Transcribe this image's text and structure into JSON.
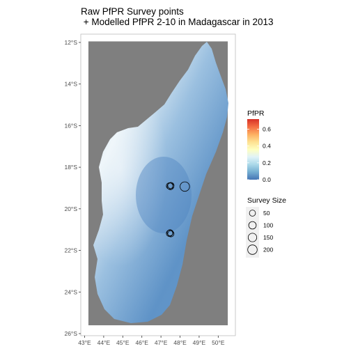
{
  "title": {
    "line1": "Raw PfPR Survey points",
    "line2": " + Modelled PfPR 2-10 in Madagascar in 2013"
  },
  "colors": {
    "panel_background": "#7f7f7f",
    "land_low": "#4575b4",
    "land_mid": "#91bfdb",
    "land_high": "#e0f3f8",
    "point_stroke": "#000000"
  },
  "chart_data": {
    "type": "map",
    "x_ticks": [
      "43°E",
      "44°E",
      "45°E",
      "46°E",
      "47°E",
      "48°E",
      "49°E",
      "50°E"
    ],
    "x_values": [
      43,
      44,
      45,
      46,
      47,
      48,
      49,
      50
    ],
    "xlim": [
      42.8,
      50.9
    ],
    "y_ticks": [
      "12°S",
      "14°S",
      "16°S",
      "18°S",
      "20°S",
      "22°S",
      "24°S",
      "26°S"
    ],
    "y_values": [
      -12,
      -14,
      -16,
      -18,
      -20,
      -22,
      -24,
      -26
    ],
    "ylim": [
      -26.1,
      -11.6
    ],
    "raster_extent": {
      "lon": [
        43.2,
        50.5
      ],
      "lat": [
        -25.6,
        -11.95
      ]
    },
    "survey_points": [
      {
        "lon": 47.45,
        "lat": -18.9,
        "size": 60
      },
      {
        "lon": 47.5,
        "lat": -18.92,
        "size": 70
      },
      {
        "lon": 47.52,
        "lat": -18.88,
        "size": 55
      },
      {
        "lon": 48.25,
        "lat": -18.93,
        "size": 200
      },
      {
        "lon": 47.45,
        "lat": -21.18,
        "size": 60
      },
      {
        "lon": 47.52,
        "lat": -21.2,
        "size": 55
      },
      {
        "lon": 47.48,
        "lat": -21.15,
        "size": 50
      }
    ],
    "legend_color": {
      "title": "PfPR",
      "breaks": [
        "0.0",
        "0.2",
        "0.4",
        "0.6"
      ],
      "break_values": [
        0,
        0.2,
        0.4,
        0.6
      ],
      "range": [
        0,
        0.72
      ],
      "stops": [
        "#4575b4",
        "#74add1",
        "#abd9e9",
        "#e0f3f8",
        "#ffffbf",
        "#fee090",
        "#fdae61",
        "#f46d43",
        "#d73027"
      ]
    },
    "legend_size": {
      "title": "Survey Size",
      "labels": [
        "50",
        "100",
        "150",
        "200"
      ],
      "values": [
        50,
        100,
        150,
        200
      ]
    }
  }
}
